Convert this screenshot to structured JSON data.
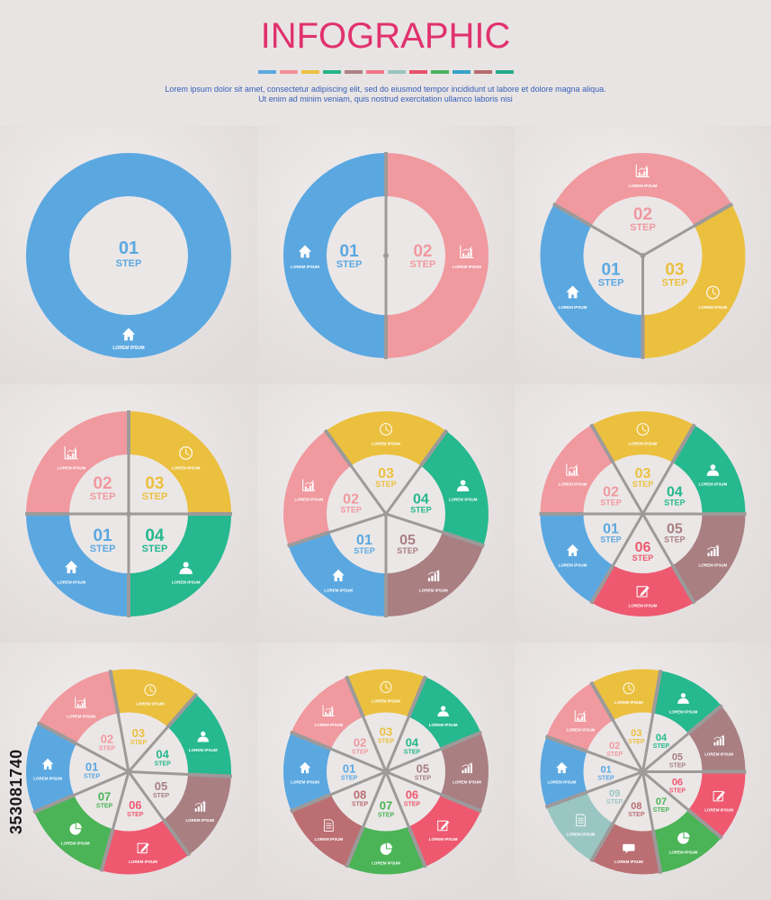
{
  "header": {
    "title": "INFOGRAPHIC",
    "description_line1": "Lorem ipsum dolor sit amet, consectetur adipiscing elit, sed do eiusmod tempor incididunt ut labore et dolore magna aliqua.",
    "description_line2": "Ut enim ad minim veniam, quis nostrud exercitation ullamco laboris nisi",
    "swatches": [
      "#5aa7e0",
      "#f0909a",
      "#ebc142",
      "#25b58a",
      "#a98283",
      "#f07688",
      "#9cc3c0",
      "#e85066",
      "#4db35e",
      "#33a1c9",
      "#b56c70",
      "#26a98c"
    ]
  },
  "labels": {
    "step": "STEP",
    "lorem": "LOREM IPSUM"
  },
  "colors": {
    "blue": "#5ba8e1",
    "pink": "#f0999f",
    "yellow": "#ebc03f",
    "green": "#26b88e",
    "mauve": "#a97f82",
    "red": "#ee5970",
    "leafgreen": "#4ab456",
    "teal": "#9ac6c2",
    "brown": "#bb6f73",
    "center": "#ebe7e7",
    "gap": "#9d9a9a"
  },
  "diagrams": [
    {
      "n": 1,
      "segments": [
        {
          "step": "01",
          "color": "blue",
          "icon": "home-icon"
        }
      ]
    },
    {
      "n": 2,
      "segments": [
        {
          "step": "01",
          "color": "blue",
          "icon": "home-icon"
        },
        {
          "step": "02",
          "color": "pink",
          "icon": "chart-icon"
        }
      ]
    },
    {
      "n": 3,
      "segments": [
        {
          "step": "01",
          "color": "blue",
          "icon": "home-icon"
        },
        {
          "step": "02",
          "color": "pink",
          "icon": "chart-icon"
        },
        {
          "step": "03",
          "color": "yellow",
          "icon": "clock-icon"
        }
      ]
    },
    {
      "n": 4,
      "segments": [
        {
          "step": "01",
          "color": "blue",
          "icon": "home-icon"
        },
        {
          "step": "02",
          "color": "pink",
          "icon": "chart-icon"
        },
        {
          "step": "03",
          "color": "yellow",
          "icon": "clock-icon"
        },
        {
          "step": "04",
          "color": "green",
          "icon": "user-icon"
        }
      ]
    },
    {
      "n": 5,
      "segments": [
        {
          "step": "01",
          "color": "blue",
          "icon": "home-icon"
        },
        {
          "step": "02",
          "color": "pink",
          "icon": "chart-icon"
        },
        {
          "step": "03",
          "color": "yellow",
          "icon": "clock-icon"
        },
        {
          "step": "04",
          "color": "green",
          "icon": "user-icon"
        },
        {
          "step": "05",
          "color": "mauve",
          "icon": "bar-chart-icon"
        }
      ]
    },
    {
      "n": 6,
      "segments": [
        {
          "step": "01",
          "color": "blue",
          "icon": "home-icon"
        },
        {
          "step": "02",
          "color": "pink",
          "icon": "chart-icon"
        },
        {
          "step": "03",
          "color": "yellow",
          "icon": "clock-icon"
        },
        {
          "step": "04",
          "color": "green",
          "icon": "user-icon"
        },
        {
          "step": "05",
          "color": "mauve",
          "icon": "bar-chart-icon"
        },
        {
          "step": "06",
          "color": "red",
          "icon": "edit-icon"
        }
      ]
    },
    {
      "n": 7,
      "segments": [
        {
          "step": "01",
          "color": "blue",
          "icon": "home-icon"
        },
        {
          "step": "02",
          "color": "pink",
          "icon": "chart-icon"
        },
        {
          "step": "03",
          "color": "yellow",
          "icon": "clock-icon"
        },
        {
          "step": "04",
          "color": "green",
          "icon": "user-icon"
        },
        {
          "step": "05",
          "color": "mauve",
          "icon": "bar-chart-icon"
        },
        {
          "step": "06",
          "color": "red",
          "icon": "edit-icon"
        },
        {
          "step": "07",
          "color": "leafgreen",
          "icon": "pie-icon"
        }
      ]
    },
    {
      "n": 8,
      "segments": [
        {
          "step": "01",
          "color": "blue",
          "icon": "home-icon"
        },
        {
          "step": "02",
          "color": "pink",
          "icon": "chart-icon"
        },
        {
          "step": "03",
          "color": "yellow",
          "icon": "clock-icon"
        },
        {
          "step": "04",
          "color": "green",
          "icon": "user-icon"
        },
        {
          "step": "05",
          "color": "mauve",
          "icon": "bar-chart-icon"
        },
        {
          "step": "06",
          "color": "red",
          "icon": "edit-icon"
        },
        {
          "step": "07",
          "color": "leafgreen",
          "icon": "pie-icon"
        },
        {
          "step": "08",
          "color": "brown",
          "icon": "document-icon"
        }
      ]
    },
    {
      "n": 9,
      "segments": [
        {
          "step": "01",
          "color": "blue",
          "icon": "home-icon"
        },
        {
          "step": "02",
          "color": "pink",
          "icon": "chart-icon"
        },
        {
          "step": "03",
          "color": "yellow",
          "icon": "clock-icon"
        },
        {
          "step": "04",
          "color": "green",
          "icon": "user-icon"
        },
        {
          "step": "05",
          "color": "mauve",
          "icon": "bar-chart-icon"
        },
        {
          "step": "06",
          "color": "red",
          "icon": "edit-icon"
        },
        {
          "step": "07",
          "color": "leafgreen",
          "icon": "pie-icon"
        },
        {
          "step": "08",
          "color": "brown",
          "icon": "chat-icon"
        },
        {
          "step": "09",
          "color": "teal",
          "icon": "document-icon"
        }
      ]
    }
  ],
  "watermark": "353081740"
}
